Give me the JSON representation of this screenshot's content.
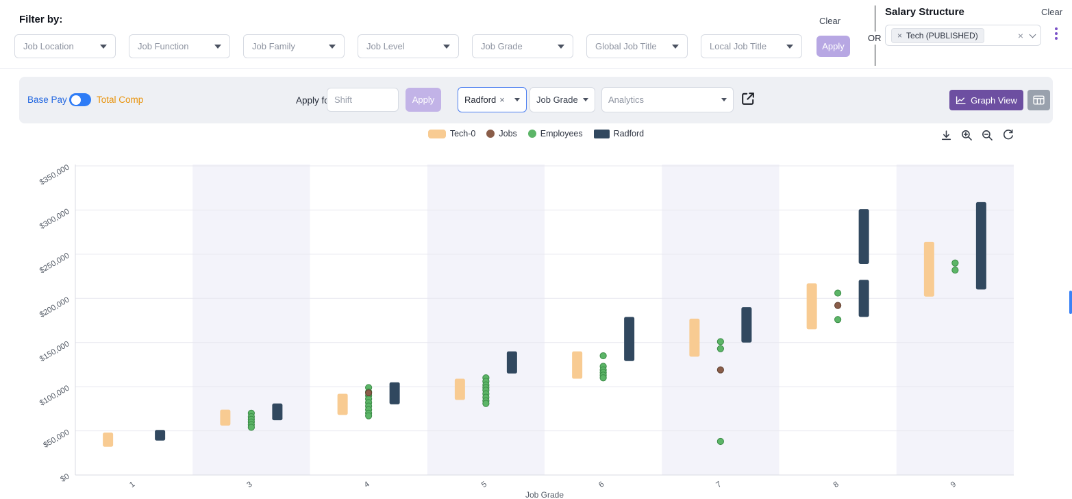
{
  "filter_bar": {
    "title": "Filter by:",
    "dropdowns": [
      {
        "label": "Job Location"
      },
      {
        "label": "Job Function"
      },
      {
        "label": "Job Family"
      },
      {
        "label": "Job Level"
      },
      {
        "label": "Job Grade"
      },
      {
        "label": "Global Job Title"
      },
      {
        "label": "Local Job Title"
      }
    ],
    "clear_label": "Clear",
    "apply_label": "Apply",
    "or_label": "OR"
  },
  "salary_structure": {
    "title": "Salary Structure",
    "clear_label": "Clear",
    "selected_tag": "Tech (PUBLISHED)"
  },
  "toolbar": {
    "base_pay_label": "Base Pay",
    "total_comp_label": "Total Comp",
    "apply_for_all_label": "Apply for all:",
    "shift_placeholder": "Shift",
    "apply_label": "Apply",
    "survey_tag": "Radford",
    "group_by_label": "Job Grade",
    "analytics_placeholder": "Analytics",
    "graph_view_label": "Graph View"
  },
  "colors": {
    "accent_purple": "#6d4fa1",
    "toggle_blue": "#2e7cf6",
    "base_pay_blue": "#2166e0",
    "total_comp_orange": "#e8930c",
    "apply_disabled_lavender": "#c2b3e7",
    "band_lavender": "#f3f3fa"
  },
  "legend": [
    {
      "label": "Tech-0",
      "color": "#f8cb92",
      "shape": "rect"
    },
    {
      "label": "Jobs",
      "color": "#8a5d49",
      "shape": "circle"
    },
    {
      "label": "Employees",
      "color": "#5cb567",
      "shape": "circle"
    },
    {
      "label": "Radford",
      "color": "#31485f",
      "shape": "rect"
    }
  ],
  "chart_data": {
    "type": "scatter",
    "subtype": "salary-range-bars-with-points",
    "title": "",
    "xlabel": "Job Grade",
    "ylabel": "",
    "x_categories": [
      "1",
      "3",
      "4",
      "5",
      "6",
      "7",
      "8",
      "9"
    ],
    "y_tick_labels": [
      "$0",
      "$50,000",
      "$100,000",
      "$150,000",
      "$200,000",
      "$250,000",
      "$300,000",
      "$350,000"
    ],
    "ylim": [
      0,
      350000
    ],
    "grid": true,
    "alternating_bands": true,
    "legend_position": "top-center",
    "series": [
      {
        "name": "Tech-0",
        "type": "range-bar",
        "color": "#f8cb92",
        "ranges_by_grade": [
          [
            [
              32000,
              48000
            ]
          ],
          [
            [
              56000,
              74000
            ]
          ],
          [
            [
              68000,
              92000
            ]
          ],
          [
            [
              85000,
              109000
            ]
          ],
          [
            [
              109000,
              140000
            ]
          ],
          [
            [
              134000,
              177000
            ]
          ],
          [
            [
              165000,
              217000
            ]
          ],
          [
            [
              202000,
              264000
            ]
          ]
        ]
      },
      {
        "name": "Radford",
        "type": "range-bar",
        "color": "#31485f",
        "ranges_by_grade": [
          [
            [
              39000,
              51000
            ]
          ],
          [
            [
              62000,
              81000
            ]
          ],
          [
            [
              80000,
              105000
            ]
          ],
          [
            [
              115000,
              140000
            ]
          ],
          [
            [
              129000,
              179000
            ]
          ],
          [
            [
              150000,
              190000
            ]
          ],
          [
            [
              179000,
              221000
            ],
            [
              239000,
              301000
            ]
          ],
          [
            [
              210000,
              309000
            ]
          ]
        ]
      },
      {
        "name": "Employees",
        "type": "scatter",
        "color": "#5cb567",
        "points_by_grade": [
          [],
          [
            70000,
            66000,
            63000,
            60000,
            57000,
            54000
          ],
          [
            99000,
            94000,
            90000,
            86000,
            82000,
            78000,
            74000,
            70000,
            67000
          ],
          [
            110000,
            106000,
            102000,
            99000,
            96000,
            92000,
            88000,
            84000,
            81000
          ],
          [
            135000,
            123000,
            119000,
            116000,
            113000,
            110000
          ],
          [
            151000,
            143000,
            38000
          ],
          [
            206000,
            176000
          ],
          [
            240000,
            232000
          ]
        ]
      },
      {
        "name": "Jobs",
        "type": "scatter",
        "color": "#8a5d49",
        "points_by_grade": [
          [],
          [],
          [
            93000
          ],
          [],
          [],
          [
            119000
          ],
          [
            192000
          ],
          []
        ]
      }
    ]
  }
}
